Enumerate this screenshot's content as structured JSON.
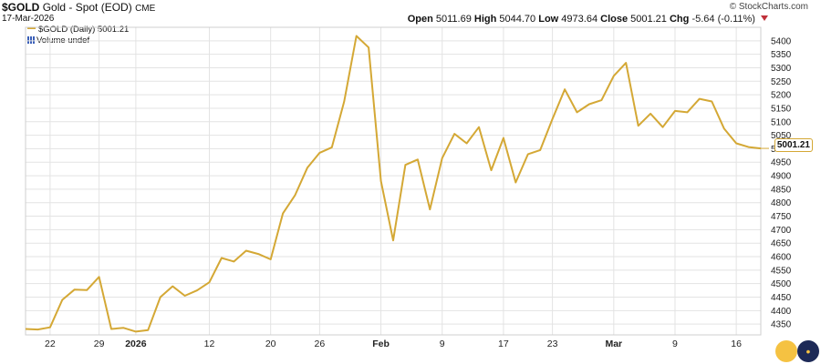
{
  "header": {
    "symbol": "$GOLD",
    "name": "Gold - Spot (EOD)",
    "exchange": "CME",
    "date": "17-Mar-2026",
    "brand": "© StockCharts.com"
  },
  "ohlc": {
    "open_label": "Open",
    "open": "5011.69",
    "high_label": "High",
    "high": "5044.70",
    "low_label": "Low",
    "low": "4973.64",
    "close_label": "Close",
    "close": "5001.21",
    "chg_label": "Chg",
    "chg": "-5.64 (-0.11%)"
  },
  "legend": {
    "series": "$GOLD (Daily) 5001.21",
    "volume": "Volume undef"
  },
  "last_value_label": "5001.21",
  "colors": {
    "line": "#d4a835",
    "grid": "#e3e3e3",
    "down": "#c0303a"
  },
  "chart_data": {
    "type": "line",
    "ylim": [
      4310,
      5450
    ],
    "yticks": [
      4350,
      4400,
      4450,
      4500,
      4550,
      4600,
      4650,
      4700,
      4750,
      4800,
      4850,
      4900,
      4950,
      5000,
      5050,
      5100,
      5150,
      5200,
      5250,
      5300,
      5350,
      5400
    ],
    "xtick_labels": [
      {
        "label": "22",
        "i": 2
      },
      {
        "label": "29",
        "i": 6
      },
      {
        "label": "2026",
        "i": 9,
        "bold": true
      },
      {
        "label": "12",
        "i": 15
      },
      {
        "label": "20",
        "i": 20
      },
      {
        "label": "26",
        "i": 24
      },
      {
        "label": "Feb",
        "i": 29,
        "bold": true
      },
      {
        "label": "9",
        "i": 34
      },
      {
        "label": "17",
        "i": 39
      },
      {
        "label": "23",
        "i": 43
      },
      {
        "label": "Mar",
        "i": 48,
        "bold": true
      },
      {
        "label": "9",
        "i": 53
      },
      {
        "label": "16",
        "i": 58
      }
    ],
    "series": [
      {
        "values": [
          4332,
          4330,
          4338,
          4440,
          4478,
          4476,
          4525,
          4332,
          4336,
          4322,
          4328,
          4450,
          4490,
          4455,
          4475,
          4505,
          4595,
          4582,
          4622,
          4610,
          4590,
          4760,
          4828,
          4930,
          4985,
          5005,
          5175,
          5418,
          5375,
          4880,
          4660,
          4940,
          4960,
          4775,
          4965,
          5055,
          5020,
          5080,
          4920,
          5040,
          4875,
          4980,
          4995,
          5110,
          5220,
          5135,
          5165,
          5180,
          5270,
          5318,
          5085,
          5130,
          5080,
          5140,
          5135,
          5185,
          5175,
          5075,
          5020,
          5006,
          5001.21
        ]
      }
    ]
  }
}
